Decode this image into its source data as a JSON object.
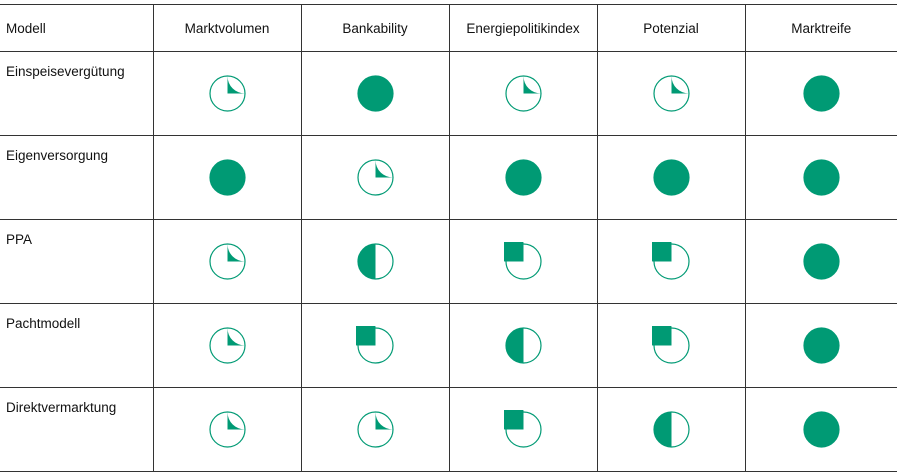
{
  "table": {
    "model_header": "Modell",
    "columns": [
      "Marktvolumen",
      "Bankability",
      "Energiepolitikindex",
      "Potenzial",
      "Marktreife"
    ],
    "rows": [
      {
        "model": "Einspeisevergütung",
        "scores": [
          0.25,
          1.0,
          0.25,
          0.25,
          1.0
        ]
      },
      {
        "model": "Eigenversorgung",
        "scores": [
          1.0,
          0.25,
          1.0,
          1.0,
          1.0
        ]
      },
      {
        "model": "PPA",
        "scores": [
          0.25,
          0.5,
          0.75,
          0.75,
          1.0
        ]
      },
      {
        "model": "Pachtmodell",
        "scores": [
          0.25,
          0.75,
          0.5,
          0.75,
          1.0
        ]
      },
      {
        "model": "Direktvermarktung",
        "scores": [
          0.25,
          0.25,
          0.75,
          0.5,
          1.0
        ]
      }
    ]
  },
  "colors": {
    "fill": "#009a74",
    "outline": "#009a74",
    "background": "#ffffff"
  }
}
